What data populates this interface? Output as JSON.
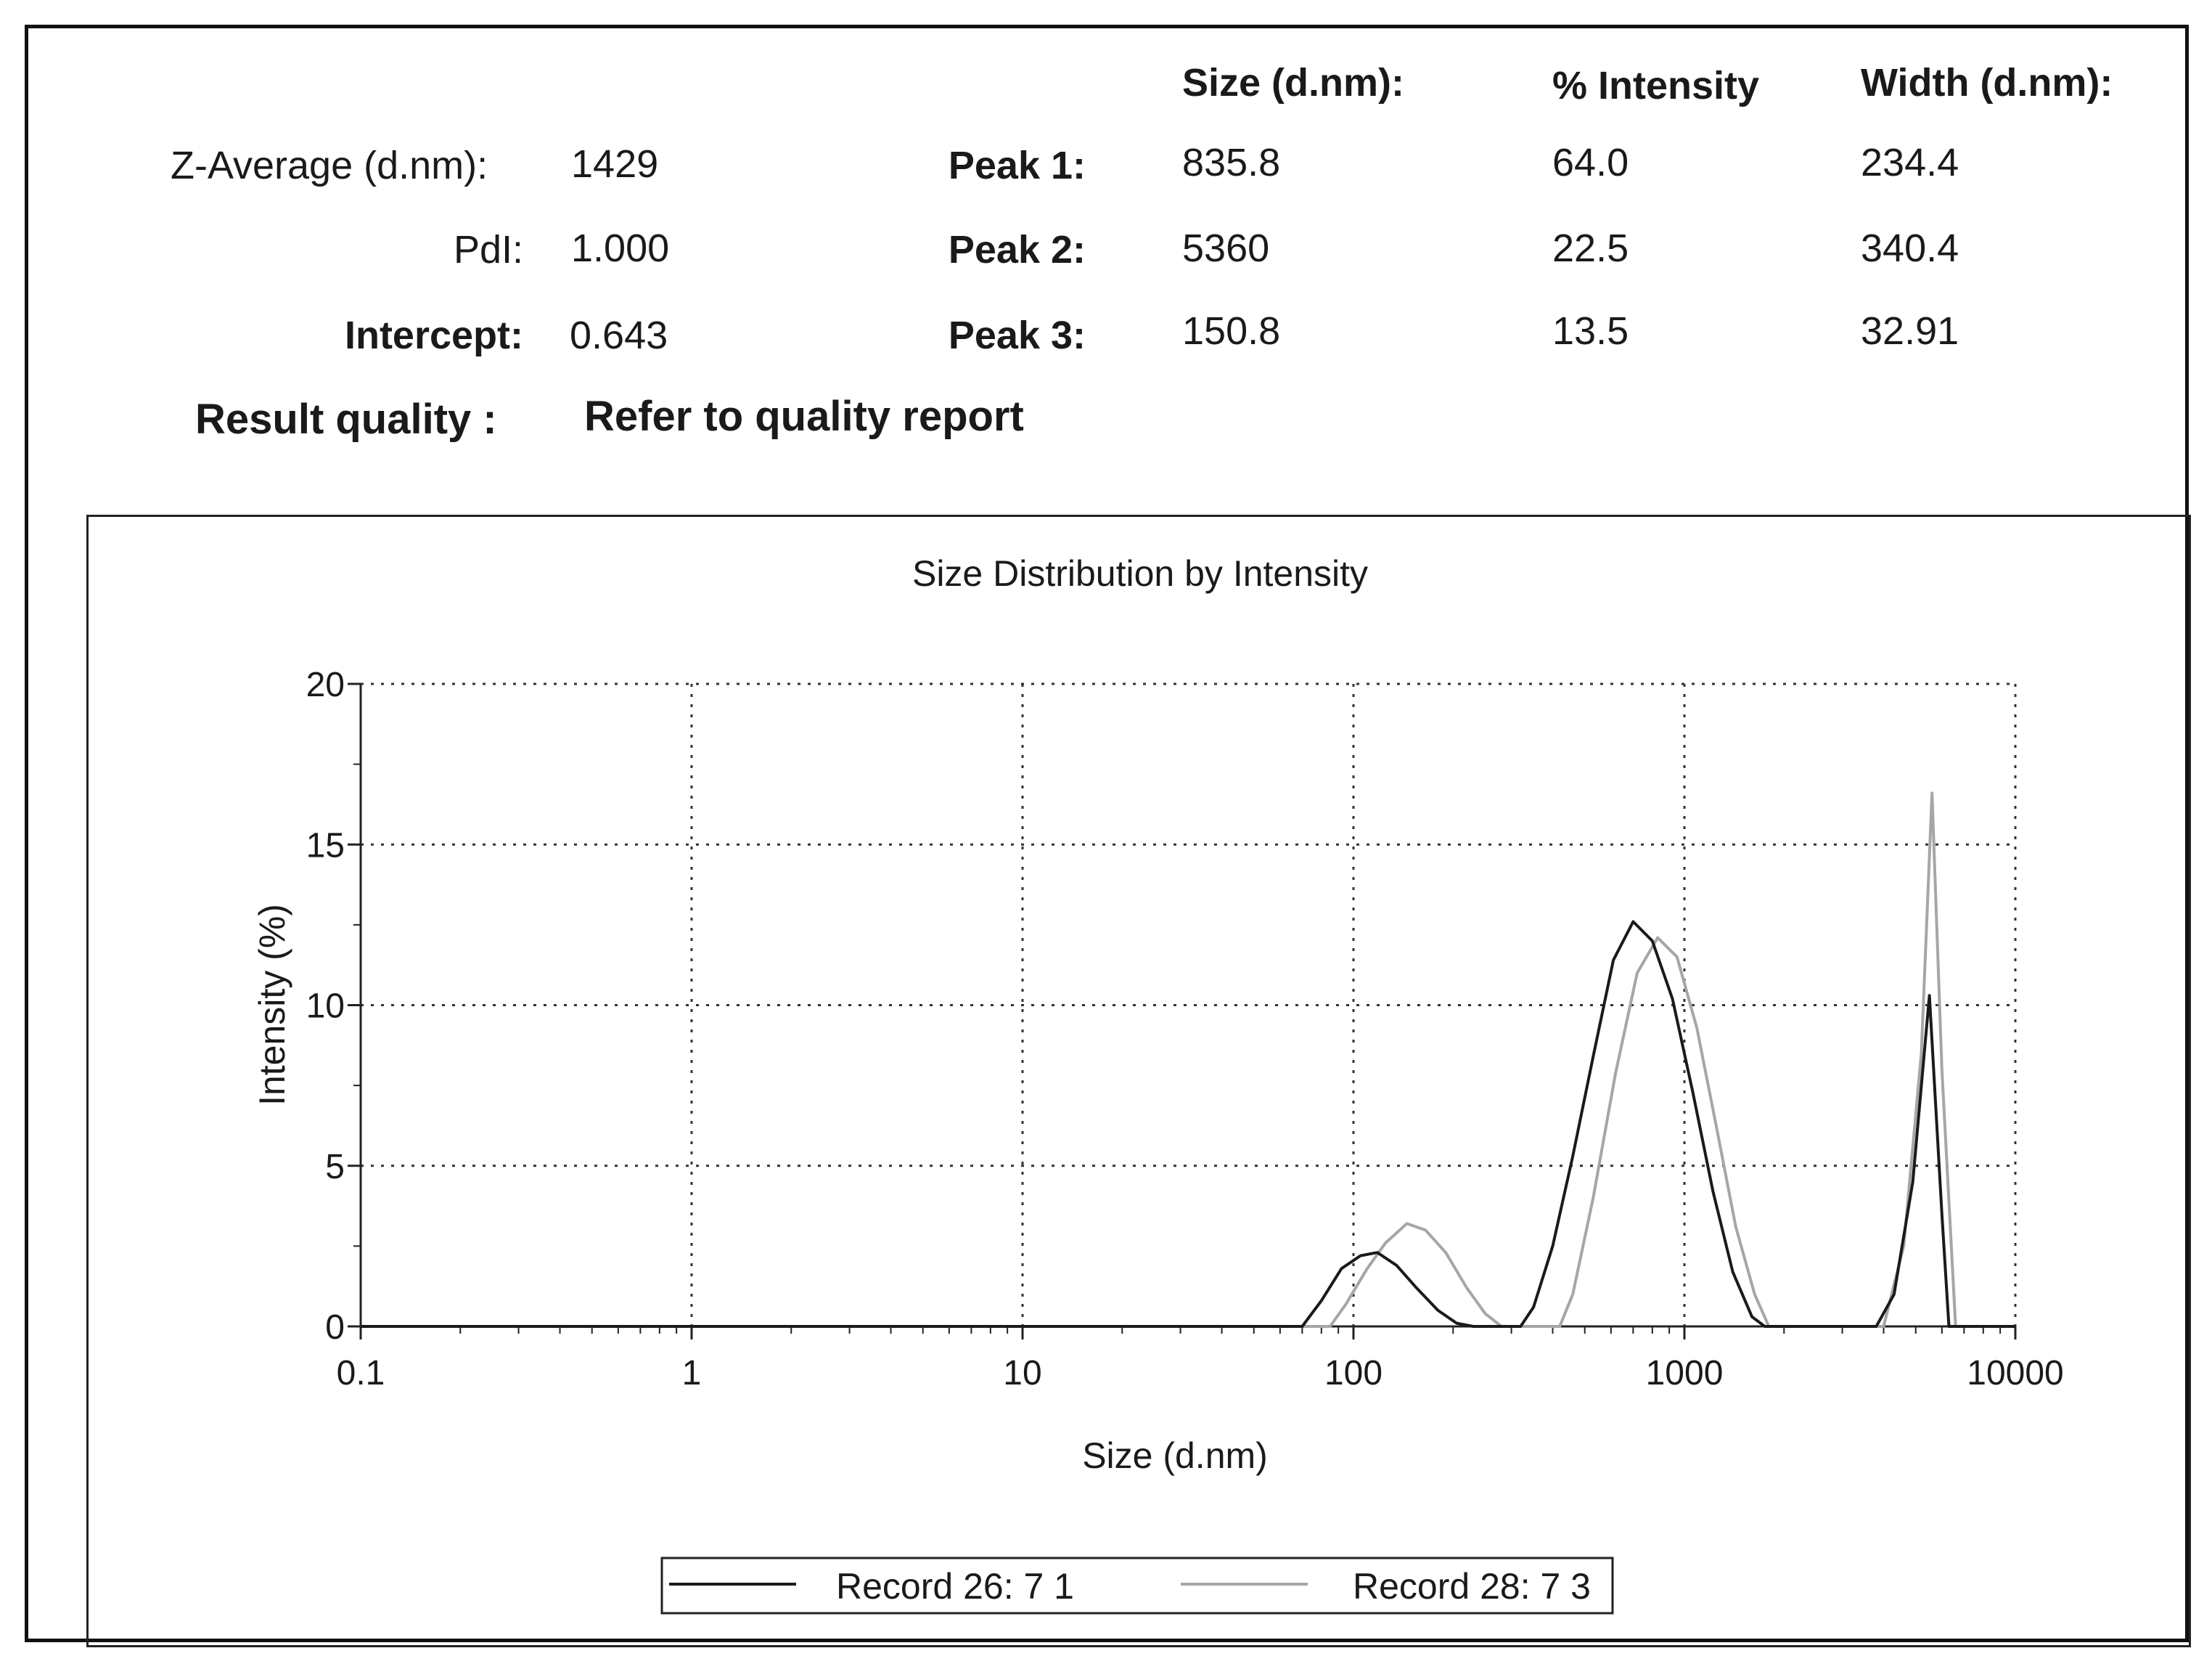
{
  "summary": {
    "z_average_label": "Z-Average (d.nm):",
    "z_average_value": "1429",
    "pdi_label": "PdI:",
    "pdi_value": "1.000",
    "intercept_label": "Intercept:",
    "intercept_value": "0.643",
    "quality_label": "Result quality :",
    "quality_value": "Refer to quality report"
  },
  "peaks": {
    "headers": {
      "size": "Size (d.nm):",
      "intensity": "% Intensity",
      "width": "Width (d.nm):"
    },
    "rows": [
      {
        "label": "Peak 1:",
        "size": "835.8",
        "intensity": "64.0",
        "width": "234.4"
      },
      {
        "label": "Peak 2:",
        "size": "5360",
        "intensity": "22.5",
        "width": "340.4"
      },
      {
        "label": "Peak 3:",
        "size": "150.8",
        "intensity": "13.5",
        "width": "32.91"
      }
    ]
  },
  "chart_data": {
    "type": "line",
    "title": "Size Distribution by Intensity",
    "xlabel": "Size (d.nm)",
    "ylabel": "Intensity (%)",
    "x_scale": "log",
    "xlim": [
      0.1,
      10000
    ],
    "ylim": [
      0,
      20
    ],
    "x_ticks": [
      "0.1",
      "1",
      "10",
      "100",
      "1000",
      "10000"
    ],
    "y_ticks": [
      "0",
      "5",
      "10",
      "15",
      "20"
    ],
    "grid": "dotted",
    "legend_position": "bottom",
    "series": [
      {
        "name": "Record 26: 7 1",
        "color": "#1a1a1a",
        "points": [
          [
            0.1,
            0
          ],
          [
            60,
            0
          ],
          [
            70,
            0
          ],
          [
            80,
            0.8
          ],
          [
            92,
            1.8
          ],
          [
            105,
            2.2
          ],
          [
            118,
            2.3
          ],
          [
            135,
            1.9
          ],
          [
            155,
            1.2
          ],
          [
            180,
            0.5
          ],
          [
            205,
            0.1
          ],
          [
            230,
            0
          ],
          [
            320,
            0
          ],
          [
            350,
            0.6
          ],
          [
            400,
            2.5
          ],
          [
            460,
            5.3
          ],
          [
            530,
            8.4
          ],
          [
            610,
            11.4
          ],
          [
            700,
            12.6
          ],
          [
            800,
            12.0
          ],
          [
            920,
            10.2
          ],
          [
            1060,
            7.3
          ],
          [
            1220,
            4.2
          ],
          [
            1400,
            1.7
          ],
          [
            1600,
            0.3
          ],
          [
            1750,
            0
          ],
          [
            3800,
            0
          ],
          [
            4300,
            1.0
          ],
          [
            4900,
            4.5
          ],
          [
            5500,
            10.3
          ],
          [
            6000,
            3.5
          ],
          [
            6300,
            0
          ],
          [
            10000,
            0
          ]
        ]
      },
      {
        "name": "Record 28: 7 3",
        "color": "#a6a6a6",
        "points": [
          [
            0.1,
            0
          ],
          [
            85,
            0
          ],
          [
            95,
            0.7
          ],
          [
            110,
            1.8
          ],
          [
            125,
            2.6
          ],
          [
            145,
            3.2
          ],
          [
            165,
            3.0
          ],
          [
            190,
            2.3
          ],
          [
            220,
            1.2
          ],
          [
            250,
            0.4
          ],
          [
            280,
            0
          ],
          [
            420,
            0
          ],
          [
            460,
            1.0
          ],
          [
            530,
            4.0
          ],
          [
            620,
            7.9
          ],
          [
            720,
            11.0
          ],
          [
            830,
            12.1
          ],
          [
            950,
            11.5
          ],
          [
            1090,
            9.3
          ],
          [
            1250,
            6.2
          ],
          [
            1430,
            3.1
          ],
          [
            1630,
            1.0
          ],
          [
            1800,
            0
          ],
          [
            4000,
            0
          ],
          [
            4600,
            2.5
          ],
          [
            5200,
            8.5
          ],
          [
            5600,
            16.6
          ],
          [
            6000,
            8.0
          ],
          [
            6600,
            0
          ],
          [
            10000,
            0
          ]
        ]
      }
    ]
  }
}
